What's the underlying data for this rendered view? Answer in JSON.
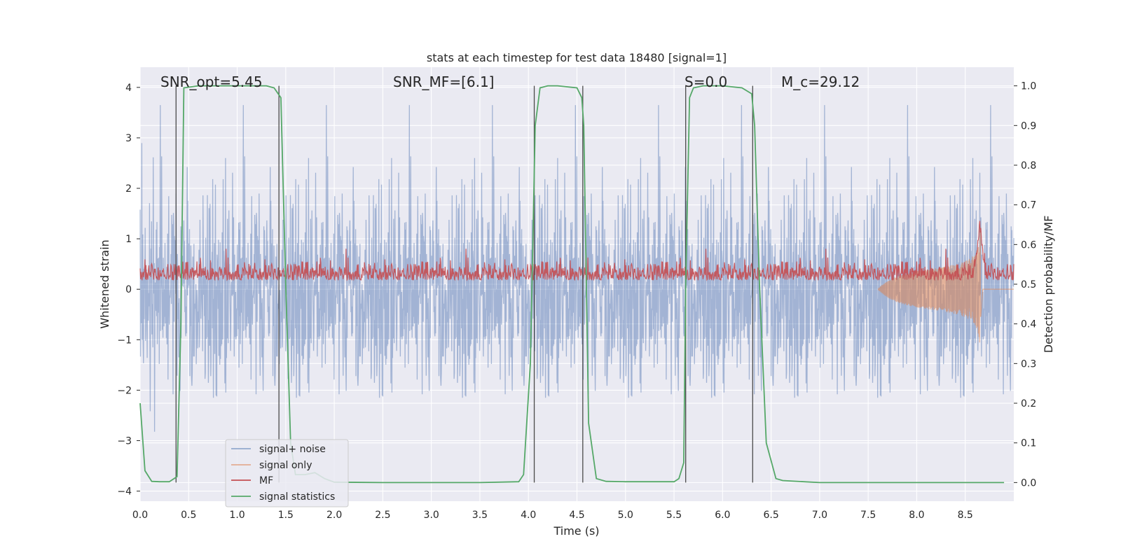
{
  "chart_data": {
    "type": "line",
    "title": "stats at each timestep for test data 18480 [signal=1]",
    "xlabel": "Time (s)",
    "ylabel": "Whitened strain",
    "y2label": "Detection probability/MF",
    "xlim": [
      0,
      9
    ],
    "ylim": [
      -4.2,
      4.4
    ],
    "y2lim": [
      -0.047,
      1.047
    ],
    "xticks": [
      "0.0",
      "0.5",
      "1.0",
      "1.5",
      "2.0",
      "2.5",
      "3.0",
      "3.5",
      "4.0",
      "4.5",
      "5.0",
      "5.5",
      "6.0",
      "6.5",
      "7.0",
      "7.5",
      "8.0",
      "8.5"
    ],
    "yticks": [
      "4",
      "3",
      "2",
      "1",
      "0",
      "−1",
      "−2",
      "−3",
      "−4"
    ],
    "y2ticks": [
      "1.0",
      "0.9",
      "0.8",
      "0.7",
      "0.6",
      "0.5",
      "0.4",
      "0.3",
      "0.2",
      "0.1",
      "0.0"
    ],
    "annotations": {
      "snr_opt": "SNR_opt=5.45",
      "snr_mf": "SNR_MF=[6.1]",
      "s_value": "S=0.0",
      "mc_value": "M_c=29.12"
    },
    "series": [
      {
        "name": "signal+ noise",
        "color": "#4c72b0",
        "note": "noisy whitened strain, approx. within ±2.5 with spikes to ±4"
      },
      {
        "name": "signal only",
        "color": "#dd8452",
        "note": "chirp near t≈8.6 s, peak amplitude ≈1.2"
      },
      {
        "name": "MF",
        "color": "#c44e52",
        "note": "matched filter output around 0.5 on right axis, peak ≈0.63 at t≈8.65 s"
      },
      {
        "name": "signal statistics",
        "color": "#55a868",
        "x": [
          0.0,
          0.05,
          0.12,
          0.2,
          0.3,
          0.38,
          0.42,
          0.45,
          0.6,
          1.0,
          1.3,
          1.38,
          1.45,
          1.5,
          1.55,
          1.6,
          1.7,
          1.8,
          1.9,
          2.0,
          2.5,
          3.0,
          3.5,
          3.9,
          3.95,
          4.02,
          4.07,
          4.12,
          4.2,
          4.3,
          4.5,
          4.55,
          4.57,
          4.62,
          4.7,
          4.8,
          5.0,
          5.5,
          5.55,
          5.6,
          5.62,
          5.66,
          5.7,
          5.8,
          6.0,
          6.2,
          6.3,
          6.33,
          6.38,
          6.45,
          6.55,
          6.62,
          7.0,
          8.0,
          8.9
        ],
        "y": [
          0.2,
          0.03,
          0.003,
          0.002,
          0.002,
          0.015,
          0.4,
          0.995,
          1.0,
          1.0,
          1.0,
          0.995,
          0.97,
          0.5,
          0.1,
          0.02,
          0.02,
          0.025,
          0.01,
          0.001,
          0.0,
          0.0,
          0.0,
          0.002,
          0.02,
          0.3,
          0.9,
          0.995,
          1.0,
          1.0,
          0.995,
          0.97,
          0.9,
          0.15,
          0.01,
          0.003,
          0.002,
          0.002,
          0.01,
          0.05,
          0.5,
          0.97,
          0.995,
          1.0,
          1.0,
          0.995,
          0.98,
          0.9,
          0.5,
          0.1,
          0.01,
          0.005,
          0.0,
          0.0,
          0.0
        ]
      }
    ],
    "vertical_lines_x": [
      0.37,
      1.43,
      4.06,
      4.56,
      5.62,
      6.31
    ],
    "legend": [
      "signal+ noise",
      "signal only",
      "MF",
      "signal statistics"
    ],
    "legend_loc": "lower-left",
    "grid": true
  }
}
